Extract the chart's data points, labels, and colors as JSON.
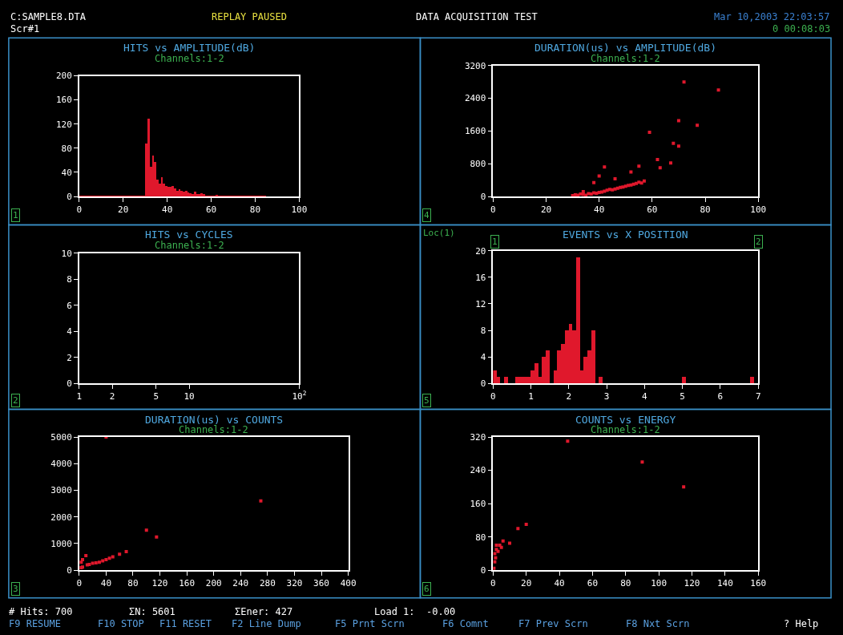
{
  "chart_data": [
    {
      "type": "histogram",
      "title": "HITS vs AMPLITUDE(dB)",
      "subtitle": "Channels:1-2",
      "color": "#e0182c",
      "bins": [
        0,
        30,
        31,
        32,
        33,
        34,
        35,
        36,
        37,
        38,
        39,
        40,
        41,
        42,
        43,
        44,
        45,
        46,
        47,
        48,
        49,
        50,
        51,
        52,
        53,
        54,
        55,
        56,
        57,
        58,
        59,
        60,
        61,
        62,
        63,
        64,
        65,
        66,
        67,
        68,
        69,
        70,
        71,
        72,
        73,
        74,
        75,
        76,
        77,
        78,
        79,
        80,
        81,
        82,
        83,
        84,
        85
      ],
      "values": [
        1,
        88,
        130,
        50,
        68,
        58,
        28,
        22,
        32,
        22,
        18,
        16,
        16,
        18,
        14,
        10,
        12,
        10,
        8,
        10,
        7,
        6,
        4,
        8,
        4,
        5,
        6,
        4,
        2,
        2,
        1,
        1,
        1,
        3,
        2,
        1,
        1,
        1,
        1,
        1,
        1,
        1,
        1,
        2,
        1,
        1,
        1,
        1,
        1,
        1,
        1,
        1,
        1,
        1,
        1,
        1
      ],
      "xlim": [
        0,
        100
      ],
      "xticks": [
        0,
        20,
        40,
        60,
        80,
        100
      ],
      "ylim": [
        0,
        200
      ],
      "yticks": [
        0,
        40,
        80,
        120,
        160,
        200
      ],
      "annotations": [
        "1"
      ]
    },
    {
      "type": "scatter",
      "title": "DURATION(us) vs AMPLITUDE(dB)",
      "subtitle": "Channels:1-2",
      "color": "#e0182c",
      "marker": "square",
      "x": [
        30,
        31,
        32,
        33,
        34,
        35,
        36,
        37,
        38,
        39,
        40,
        41,
        42,
        43,
        44,
        45,
        46,
        47,
        48,
        49,
        50,
        51,
        52,
        53,
        54,
        55,
        56,
        57,
        34,
        40,
        38,
        42,
        46,
        52,
        55,
        62,
        63,
        67,
        68,
        70,
        72,
        77,
        85,
        70,
        59
      ],
      "values": [
        20,
        40,
        30,
        60,
        50,
        30,
        70,
        60,
        90,
        80,
        100,
        110,
        130,
        150,
        170,
        160,
        180,
        200,
        220,
        230,
        250,
        270,
        280,
        300,
        320,
        350,
        330,
        380,
        120,
        500,
        340,
        720,
        430,
        600,
        740,
        900,
        700,
        820,
        1300,
        1230,
        2800,
        1740,
        2600,
        1850,
        1570
      ],
      "xlim": [
        0,
        100
      ],
      "xticks": [
        0,
        20,
        40,
        60,
        80,
        100
      ],
      "ylim": [
        0,
        3200
      ],
      "yticks": [
        0,
        800,
        1600,
        2400,
        3200
      ],
      "annotations": [
        "4"
      ]
    },
    {
      "type": "scatter",
      "title": "HITS vs CYCLES",
      "subtitle": "Channels:1-2",
      "color": "#e0182c",
      "marker": "square",
      "log": "x",
      "xlim": [
        1,
        100
      ],
      "xticks": [
        1,
        2,
        5,
        10,
        {
          "value": 100,
          "label": "10$^{2}$"
        }
      ],
      "ylim": [
        0,
        10
      ],
      "yticks": [
        0,
        2,
        4,
        6,
        8,
        10
      ],
      "annotations": [
        "2"
      ]
    },
    {
      "type": "histogram",
      "title": "EVENTS vs X POSITION",
      "color": "#e0182c",
      "bins": [
        0,
        0.1,
        0.2,
        0.3,
        0.4,
        0.5,
        0.6,
        0.7,
        0.8,
        0.9,
        1,
        1.1,
        1.2,
        1.3,
        1.4,
        1.5,
        1.6,
        1.7,
        1.8,
        1.9,
        2,
        2.1,
        2.2,
        2.3,
        2.4,
        2.5,
        2.6,
        2.7,
        2.8,
        2.9,
        3,
        3.1,
        3.2,
        3.3,
        3.4,
        3.5,
        3.6,
        3.7,
        3.8,
        3.9,
        4,
        4.1,
        4.2,
        4.3,
        4.4,
        4.5,
        4.6,
        4.7,
        4.8,
        4.9,
        5,
        5.1,
        5.2,
        5.3,
        5.4,
        5.5,
        5.6,
        5.7,
        5.8,
        5.9,
        6,
        6.1,
        6.2,
        6.3,
        6.4,
        6.5,
        6.6,
        6.7,
        6.8,
        6.9,
        7
      ],
      "values": [
        2,
        1,
        0,
        1,
        0,
        0,
        1,
        1,
        1,
        1,
        2,
        3,
        1,
        4,
        5,
        0,
        2,
        5,
        6,
        8,
        9,
        8,
        19,
        2,
        4,
        5,
        8,
        0,
        1,
        0,
        0,
        0,
        0,
        0,
        0,
        0,
        0,
        0,
        0,
        0,
        0,
        0,
        0,
        0,
        0,
        0,
        0,
        0,
        0,
        0,
        1,
        0,
        0,
        0,
        0,
        0,
        0,
        0,
        0,
        0,
        0,
        0,
        0,
        0,
        0,
        0,
        0,
        0,
        1,
        0
      ],
      "xlim": [
        0,
        7
      ],
      "xticks": [
        0,
        1,
        2,
        3,
        4,
        5,
        6,
        7
      ],
      "ylim": [
        0,
        20
      ],
      "yticks": [
        0,
        4,
        8,
        12,
        16,
        20
      ],
      "annotations": [
        "5",
        "Loc(1)",
        "1",
        "2"
      ]
    },
    {
      "type": "scatter",
      "title": "DURATION(us) vs COUNTS",
      "subtitle": "Channels:1-2",
      "color": "#e0182c",
      "marker": "square",
      "x": [
        3,
        5,
        12,
        15,
        20,
        25,
        30,
        35,
        40,
        45,
        50,
        60,
        70,
        5,
        10,
        3,
        100,
        115,
        270,
        40
      ],
      "values": [
        100,
        120,
        200,
        220,
        260,
        280,
        300,
        350,
        400,
        450,
        500,
        600,
        700,
        400,
        550,
        300,
        1500,
        1250,
        2600,
        5000
      ],
      "xlim": [
        0,
        400
      ],
      "xticks": [
        0,
        40,
        80,
        120,
        160,
        200,
        240,
        280,
        320,
        360,
        400
      ],
      "ylim": [
        0,
        5000
      ],
      "yticks": [
        0,
        1000,
        2000,
        3000,
        4000,
        5000
      ],
      "annotations": [
        "3"
      ]
    },
    {
      "type": "scatter",
      "title": "COUNTS vs ENERGY",
      "subtitle": "Channels:1-2",
      "color": "#e0182c",
      "marker": "square",
      "x": [
        0.5,
        1,
        1,
        1.5,
        2,
        2,
        3,
        4,
        5,
        6,
        10,
        15,
        20,
        90,
        115,
        45
      ],
      "values": [
        5,
        20,
        40,
        30,
        50,
        60,
        45,
        60,
        55,
        70,
        65,
        100,
        110,
        260,
        200,
        310
      ],
      "xlim": [
        0,
        160
      ],
      "xticks": [
        0,
        20,
        40,
        60,
        80,
        100,
        120,
        140,
        160
      ],
      "ylim": [
        0,
        320
      ],
      "yticks": [
        0,
        80,
        160,
        240,
        320
      ],
      "annotations": [
        "6"
      ]
    },
    {
      "type": "other",
      "annotations": [
        "C:SAMPLE8.DTA",
        "Scr#1",
        "REPLAY PAUSED",
        "DATA ACQUISITION TEST",
        "Mar 10,2003 22:03:57",
        "0 00:08:03",
        "# Hits: 700",
        "ΣN: 5601",
        "ΣEner: 427",
        "Load 1:  -0.00",
        "F9 RESUME",
        "F10 STOP",
        "F11 RESET",
        "F2 Line Dump",
        "F5 Prnt Scrn",
        "F6 Comnt",
        "F7 Prev Scrn",
        "F8 Nxt Scrn",
        "? Help"
      ]
    }
  ]
}
